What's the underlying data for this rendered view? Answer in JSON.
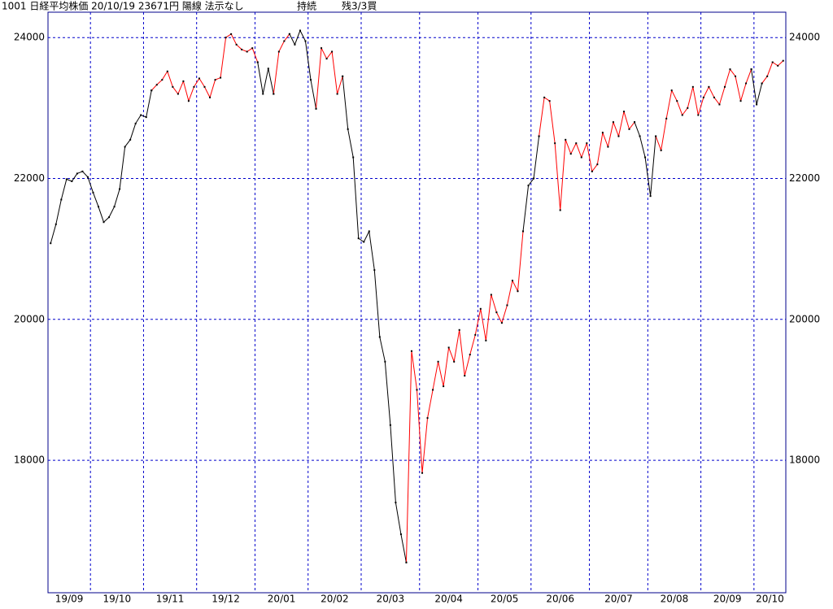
{
  "chart_data": {
    "type": "line",
    "title": "1001 日経平均株価 20/10/19 23671円 陽線 法示なし",
    "status": "持続",
    "position": "残3/3買",
    "ylim": [
      16120,
      24360
    ],
    "yticks": [
      18000,
      20000,
      22000,
      24000
    ],
    "grid": true,
    "categories": [
      "19/09",
      null,
      null,
      null,
      null,
      null,
      null,
      null,
      "19/10",
      null,
      null,
      null,
      null,
      null,
      null,
      null,
      null,
      null,
      "19/11",
      null,
      null,
      null,
      null,
      null,
      null,
      null,
      null,
      null,
      "19/12",
      null,
      null,
      null,
      null,
      null,
      null,
      null,
      null,
      null,
      null,
      "20/01",
      null,
      null,
      null,
      null,
      null,
      null,
      null,
      null,
      null,
      "20/02",
      null,
      null,
      null,
      null,
      null,
      null,
      null,
      null,
      null,
      "20/03",
      null,
      null,
      null,
      null,
      null,
      null,
      null,
      null,
      null,
      null,
      "20/04",
      null,
      null,
      null,
      null,
      null,
      null,
      null,
      null,
      null,
      null,
      "20/05",
      null,
      null,
      null,
      null,
      null,
      null,
      null,
      null,
      null,
      "20/06",
      null,
      null,
      null,
      null,
      null,
      null,
      null,
      null,
      null,
      null,
      "20/07",
      null,
      null,
      null,
      null,
      null,
      null,
      null,
      null,
      null,
      null,
      "20/08",
      null,
      null,
      null,
      null,
      null,
      null,
      null,
      null,
      null,
      "20/09",
      null,
      null,
      null,
      null,
      null,
      null,
      null,
      null,
      null,
      "20/10",
      null,
      null,
      null,
      null,
      null
    ],
    "series": [
      {
        "color": "#000000",
        "values": [
          21080,
          21350,
          21700,
          21990,
          21960,
          22070,
          22100,
          22020,
          21800,
          21600,
          21380,
          21450,
          21600,
          21850,
          22450,
          22550,
          22780,
          22900,
          22870,
          23250,
          null,
          null,
          null,
          null,
          null,
          null,
          null,
          null,
          null,
          null,
          null,
          null,
          null,
          null,
          null,
          null,
          null,
          null,
          null,
          23650,
          23200,
          23560,
          23200,
          null,
          null,
          24050,
          23900,
          24100,
          23950,
          23400,
          22990,
          null,
          null,
          null,
          null,
          23450,
          22700,
          22300,
          21150,
          21100,
          21250,
          20700,
          19750,
          19400,
          18500,
          17400,
          16950,
          16550,
          null,
          null,
          null,
          null,
          null,
          null,
          null,
          null,
          null,
          null,
          null,
          null,
          null,
          null,
          null,
          null,
          null,
          null,
          null,
          null,
          null,
          21250,
          21900,
          22000,
          22600,
          null,
          null,
          null,
          null,
          null,
          null,
          null,
          null,
          null,
          null,
          null,
          null,
          null,
          null,
          null,
          null,
          null,
          22800,
          22600,
          22300,
          21750,
          22600,
          null,
          null,
          null,
          null,
          null,
          null,
          null,
          null,
          null,
          null,
          null,
          null,
          null,
          null,
          null,
          null,
          null,
          23550,
          23050,
          23350,
          null,
          null,
          null,
          null
        ]
      },
      {
        "color": "#ff0000",
        "values": [
          null,
          null,
          null,
          null,
          null,
          null,
          null,
          null,
          null,
          null,
          null,
          null,
          null,
          null,
          null,
          null,
          null,
          null,
          null,
          23250,
          23330,
          23400,
          23520,
          23300,
          23200,
          23380,
          23100,
          23300,
          23420,
          23300,
          23150,
          23400,
          23430,
          24000,
          24050,
          23900,
          23830,
          23800,
          23850,
          23650,
          null,
          null,
          23200,
          23800,
          23950,
          24050,
          null,
          null,
          null,
          null,
          22990,
          23850,
          23700,
          23800,
          23200,
          23450,
          null,
          null,
          null,
          null,
          null,
          null,
          null,
          null,
          null,
          null,
          null,
          16550,
          19550,
          19000,
          17820,
          18600,
          19000,
          19400,
          19050,
          19600,
          19400,
          19850,
          19200,
          19500,
          19780,
          20150,
          19700,
          20350,
          20100,
          19950,
          20200,
          20550,
          20400,
          21250,
          null,
          null,
          22600,
          23150,
          23100,
          22500,
          21550,
          22550,
          22350,
          22500,
          22300,
          22500,
          22100,
          22200,
          22650,
          22450,
          22800,
          22600,
          22950,
          22700,
          22800,
          null,
          null,
          null,
          22600,
          22400,
          22850,
          23250,
          23100,
          22900,
          23000,
          23300,
          22900,
          23150,
          23300,
          23150,
          23050,
          23300,
          23550,
          23450,
          23100,
          23350,
          23550,
          null,
          23350,
          23450,
          23650,
          23600,
          23671
        ]
      }
    ]
  }
}
